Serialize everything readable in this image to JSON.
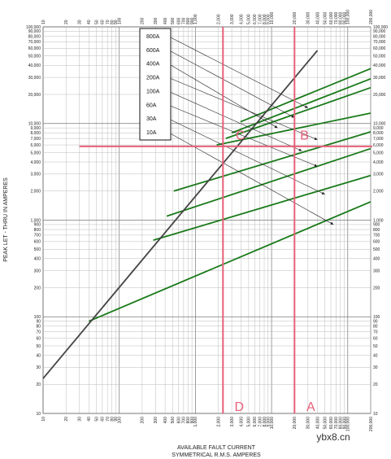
{
  "chart_data": {
    "type": "line",
    "scale": "log-log",
    "xlabel": "AVAILABLE FAULT CURRENT",
    "xlabel2": "SYMMETRICAL R.M.S. AMPERES",
    "ylabel": "PEAK LET - THRU IN AMPERES",
    "xlim": [
      10,
      200000
    ],
    "ylim": [
      10,
      100000
    ],
    "xticks": [
      {
        "v": 10,
        "t": "10"
      },
      {
        "v": 20,
        "t": "20"
      },
      {
        "v": 30,
        "t": "30"
      },
      {
        "v": 40,
        "t": "40"
      },
      {
        "v": 50,
        "t": "50"
      },
      {
        "v": 60,
        "t": "60"
      },
      {
        "v": 70,
        "t": "70"
      },
      {
        "v": 80,
        "t": "80"
      },
      {
        "v": 90,
        "t": "90"
      },
      {
        "v": 100,
        "t": "100"
      },
      {
        "v": 200,
        "t": "200"
      },
      {
        "v": 300,
        "t": "300"
      },
      {
        "v": 400,
        "t": "400"
      },
      {
        "v": 500,
        "t": "500"
      },
      {
        "v": 600,
        "t": "600"
      },
      {
        "v": 700,
        "t": "700"
      },
      {
        "v": 800,
        "t": "800"
      },
      {
        "v": 900,
        "t": "900"
      },
      {
        "v": 1000,
        "t": "1,000"
      },
      {
        "v": 2000,
        "t": "2,000"
      },
      {
        "v": 3000,
        "t": "3,000"
      },
      {
        "v": 4000,
        "t": "4,000"
      },
      {
        "v": 5000,
        "t": "5,000"
      },
      {
        "v": 6000,
        "t": "6,000"
      },
      {
        "v": 7000,
        "t": "7,000"
      },
      {
        "v": 8000,
        "t": "8,000"
      },
      {
        "v": 9000,
        "t": "9,000"
      },
      {
        "v": 10000,
        "t": "10,000"
      },
      {
        "v": 20000,
        "t": "20,000"
      },
      {
        "v": 30000,
        "t": "30,000"
      },
      {
        "v": 40000,
        "t": "40,000"
      },
      {
        "v": 50000,
        "t": "50,000"
      },
      {
        "v": 60000,
        "t": "60,000"
      },
      {
        "v": 70000,
        "t": "70,000"
      },
      {
        "v": 80000,
        "t": "80,000"
      },
      {
        "v": 90000,
        "t": "90,000"
      },
      {
        "v": 100000,
        "t": "100,000"
      },
      {
        "v": 200000,
        "t": "200,000"
      }
    ],
    "yticks": [
      {
        "v": 10,
        "t": "10"
      },
      {
        "v": 20,
        "t": "20"
      },
      {
        "v": 30,
        "t": "30"
      },
      {
        "v": 40,
        "t": "40"
      },
      {
        "v": 50,
        "t": "50"
      },
      {
        "v": 60,
        "t": "60"
      },
      {
        "v": 70,
        "t": "70"
      },
      {
        "v": 80,
        "t": "80"
      },
      {
        "v": 90,
        "t": "90"
      },
      {
        "v": 100,
        "t": "100"
      },
      {
        "v": 200,
        "t": "200"
      },
      {
        "v": 300,
        "t": "300"
      },
      {
        "v": 400,
        "t": "400"
      },
      {
        "v": 500,
        "t": "500"
      },
      {
        "v": 600,
        "t": "600"
      },
      {
        "v": 700,
        "t": "700"
      },
      {
        "v": 800,
        "t": "800"
      },
      {
        "v": 900,
        "t": "900"
      },
      {
        "v": 1000,
        "t": "1,000"
      },
      {
        "v": 2000,
        "t": "2,000"
      },
      {
        "v": 3000,
        "t": "3,000"
      },
      {
        "v": 4000,
        "t": "4,000"
      },
      {
        "v": 5000,
        "t": "5,000"
      },
      {
        "v": 6000,
        "t": "6,000"
      },
      {
        "v": 7000,
        "t": "7,000"
      },
      {
        "v": 8000,
        "t": "8,000"
      },
      {
        "v": 9000,
        "t": "9,000"
      },
      {
        "v": 10000,
        "t": "10,000"
      },
      {
        "v": 20000,
        "t": "20,000"
      },
      {
        "v": 30000,
        "t": "30,000"
      },
      {
        "v": 40000,
        "t": "40,000"
      },
      {
        "v": 50000,
        "t": "50,000"
      },
      {
        "v": 60000,
        "t": "60,000"
      },
      {
        "v": 70000,
        "t": "70,000"
      },
      {
        "v": 80000,
        "t": "80,000"
      },
      {
        "v": 90000,
        "t": "90,000"
      },
      {
        "v": 100000,
        "t": "100,000"
      }
    ],
    "grid": true,
    "reference_line": {
      "color": "#444444",
      "points": [
        [
          10,
          23
        ],
        [
          40000,
          57000
        ]
      ]
    },
    "series": [
      {
        "name": "800A",
        "color": "#1a7a1a",
        "points": [
          [
            3900,
            10400
          ],
          [
            200000,
            37000
          ]
        ],
        "arrow_end": [
          30000,
          14500
        ]
      },
      {
        "name": "600A",
        "color": "#1a7a1a",
        "points": [
          [
            3000,
            8000
          ],
          [
            200000,
            29000
          ]
        ],
        "arrow_end": [
          20000,
          11500
        ]
      },
      {
        "name": "400A",
        "color": "#1a7a1a",
        "points": [
          [
            2500,
            7000
          ],
          [
            200000,
            23500
          ]
        ],
        "arrow_end": [
          12000,
          9000
        ]
      },
      {
        "name": "200A",
        "color": "#1a7a1a",
        "points": [
          [
            1900,
            6000
          ],
          [
            200000,
            12800
          ]
        ],
        "arrow_end": [
          40000,
          6800
        ]
      },
      {
        "name": "100A",
        "color": "#1a7a1a",
        "points": [
          [
            520,
            2000
          ],
          [
            200000,
            8200
          ]
        ],
        "arrow_end": [
          25000,
          5200
        ]
      },
      {
        "name": "60A",
        "color": "#1a7a1a",
        "points": [
          [
            420,
            1100
          ],
          [
            200000,
            5500
          ]
        ],
        "arrow_end": [
          40000,
          3600
        ]
      },
      {
        "name": "30A",
        "color": "#1a7a1a",
        "points": [
          [
            280,
            620
          ],
          [
            200000,
            2900
          ]
        ],
        "arrow_end": [
          50000,
          1850
        ]
      },
      {
        "name": "10A",
        "color": "#1a7a1a",
        "points": [
          [
            40,
            90
          ],
          [
            200000,
            1550
          ]
        ],
        "arrow_end": [
          65000,
          900
        ]
      }
    ],
    "legend": {
      "placement": "top-center-left",
      "entries": [
        "800A",
        "600A",
        "400A",
        "200A",
        "100A",
        "60A",
        "30A",
        "10A"
      ]
    },
    "annotations": {
      "color": "#e8607a",
      "vertical_lines": [
        {
          "x": 2300,
          "label": "D"
        },
        {
          "x": 20000,
          "label": "A"
        }
      ],
      "horizontal_line": {
        "y": 5800
      },
      "point_labels": [
        {
          "label": "C",
          "x": 3900,
          "y": 6800
        },
        {
          "label": "B",
          "x": 27000,
          "y": 6800
        }
      ]
    }
  },
  "watermark": "ybx8.cn"
}
